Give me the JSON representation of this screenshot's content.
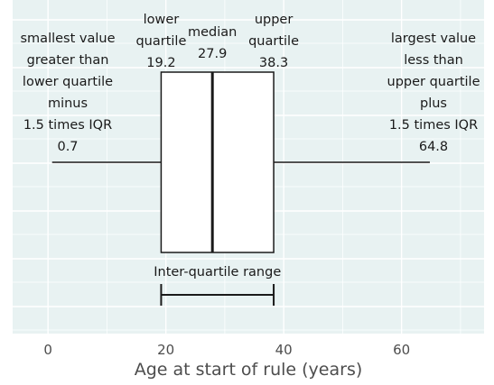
{
  "chart_data": {
    "type": "boxplot",
    "xlabel": "Age at start of rule (years)",
    "xlim": [
      -6,
      74
    ],
    "xticks": [
      0,
      20,
      40,
      60
    ],
    "grid": true,
    "box": {
      "min": 0.7,
      "q1": 19.2,
      "median": 27.9,
      "q3": 38.3,
      "max": 64.8
    },
    "annotations": {
      "lower_whisker": [
        "smallest value",
        "greater than",
        "lower quartile",
        "minus",
        "1.5 times IQR",
        "0.7"
      ],
      "upper_whisker": [
        "largest value",
        "less than",
        "upper quartile",
        "plus",
        "1.5 times IQR",
        "64.8"
      ],
      "q1": [
        "lower",
        "quartile",
        "19.2"
      ],
      "median": [
        "median",
        "27.9"
      ],
      "q3": [
        "upper",
        "quartile",
        "38.3"
      ],
      "iqr": "Inter-quartile range"
    },
    "colors": {
      "panel": "#e8f2f2",
      "grid": "#ffffff",
      "box_fill": "#ffffff",
      "line": "#1a1a1a"
    }
  }
}
